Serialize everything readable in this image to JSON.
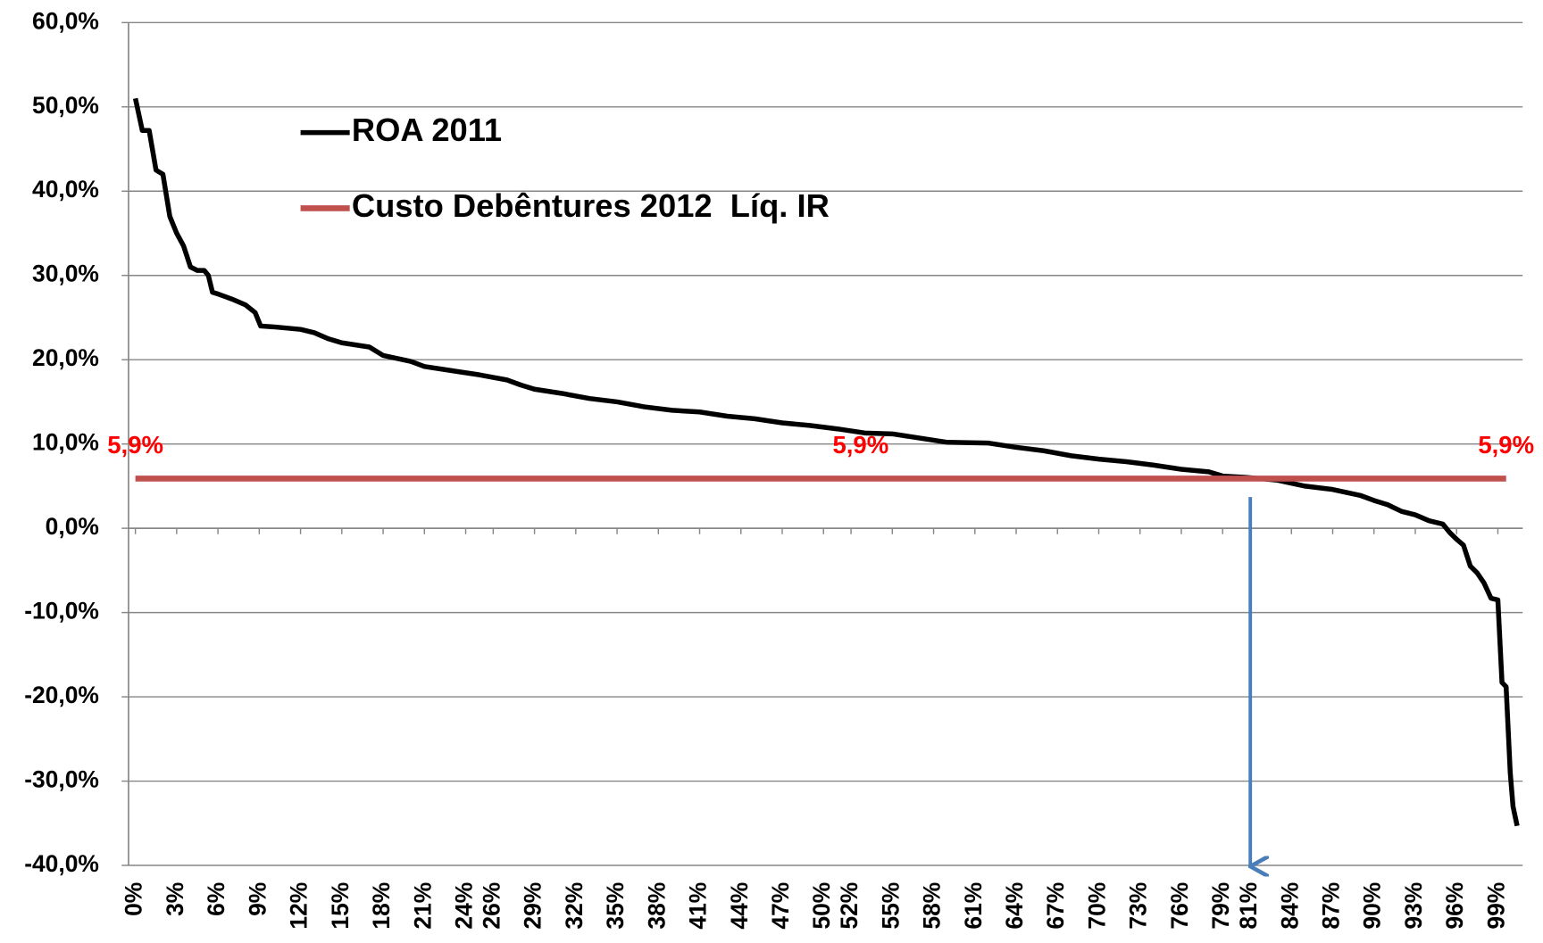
{
  "chart_data": {
    "type": "line",
    "legend": "upper left",
    "grid": true,
    "xlim": [
      -0.5,
      100.8
    ],
    "ylim": [
      -40,
      60
    ],
    "xticks": [
      {
        "value": 0,
        "label": "0%"
      },
      {
        "value": 3,
        "label": "3%"
      },
      {
        "value": 6,
        "label": "6%"
      },
      {
        "value": 9,
        "label": "9%"
      },
      {
        "value": 12,
        "label": "12%"
      },
      {
        "value": 15,
        "label": "15%"
      },
      {
        "value": 18,
        "label": "18%"
      },
      {
        "value": 21,
        "label": "21%"
      },
      {
        "value": 24,
        "label": "24%"
      },
      {
        "value": 26,
        "label": "26%"
      },
      {
        "value": 29,
        "label": "29%"
      },
      {
        "value": 32,
        "label": "32%"
      },
      {
        "value": 35,
        "label": "35%"
      },
      {
        "value": 38,
        "label": "38%"
      },
      {
        "value": 41,
        "label": "41%"
      },
      {
        "value": 44,
        "label": "44%"
      },
      {
        "value": 47,
        "label": "47%"
      },
      {
        "value": 50,
        "label": "50%"
      },
      {
        "value": 52,
        "label": "52%"
      },
      {
        "value": 55,
        "label": "55%"
      },
      {
        "value": 58,
        "label": "58%"
      },
      {
        "value": 61,
        "label": "61%"
      },
      {
        "value": 64,
        "label": "64%"
      },
      {
        "value": 67,
        "label": "67%"
      },
      {
        "value": 70,
        "label": "70%"
      },
      {
        "value": 73,
        "label": "73%"
      },
      {
        "value": 76,
        "label": "76%"
      },
      {
        "value": 79,
        "label": "79%"
      },
      {
        "value": 81,
        "label": "81%"
      },
      {
        "value": 84,
        "label": "84%"
      },
      {
        "value": 87,
        "label": "87%"
      },
      {
        "value": 90,
        "label": "90%"
      },
      {
        "value": 93,
        "label": "93%"
      },
      {
        "value": 96,
        "label": "96%"
      },
      {
        "value": 99,
        "label": "99%"
      }
    ],
    "yticks": [
      {
        "value": 60,
        "label": "60,0%"
      },
      {
        "value": 50,
        "label": "50,0%"
      },
      {
        "value": 40,
        "label": "40,0%"
      },
      {
        "value": 30,
        "label": "30,0%"
      },
      {
        "value": 20,
        "label": "20,0%"
      },
      {
        "value": 10,
        "label": "10,0%"
      },
      {
        "value": 0,
        "label": "0,0%"
      },
      {
        "value": -10,
        "label": "-10,0%"
      },
      {
        "value": -20,
        "label": "-20,0%"
      },
      {
        "value": -30,
        "label": "-30,0%"
      },
      {
        "value": -40,
        "label": "-40,0%"
      }
    ],
    "series": [
      {
        "name": "ROA 2011",
        "color": "#000000",
        "x": [
          0,
          0.5,
          1,
          1.5,
          2,
          2.5,
          3,
          3.5,
          4,
          4.5,
          5,
          5.3,
          5.6,
          6,
          7,
          8,
          8.7,
          9.1,
          10,
          12,
          13,
          14,
          15,
          17,
          18,
          20,
          21,
          23,
          25,
          27,
          28,
          29,
          31,
          33,
          35,
          37,
          39,
          41,
          43,
          45,
          47,
          49,
          51,
          53,
          55,
          57,
          59,
          62,
          64,
          66,
          68,
          70,
          72,
          74,
          76,
          78,
          79,
          81,
          83,
          85,
          87,
          89,
          90,
          91,
          92,
          93,
          94,
          95,
          95.5,
          96,
          96.5,
          97,
          97.5,
          98,
          98.5,
          99,
          99.3,
          99.6,
          99.9,
          100.1,
          100.4
        ],
        "values": [
          51,
          47.2,
          47.2,
          42.5,
          42,
          37,
          35,
          33.5,
          31,
          30.6,
          30.6,
          30,
          28,
          27.8,
          27.2,
          26.5,
          25.6,
          24,
          23.9,
          23.6,
          23.2,
          22.5,
          22,
          21.5,
          20.5,
          19.8,
          19.2,
          18.7,
          18.2,
          17.6,
          17,
          16.5,
          16,
          15.4,
          15,
          14.4,
          14,
          13.8,
          13.3,
          13,
          12.5,
          12.2,
          11.8,
          11.3,
          11.2,
          10.7,
          10.2,
          10.1,
          9.6,
          9.2,
          8.6,
          8.2,
          7.9,
          7.5,
          7.0,
          6.7,
          6.2,
          6.0,
          5.7,
          5.0,
          4.6,
          3.9,
          3.3,
          2.8,
          2.0,
          1.6,
          0.9,
          0.5,
          -0.5,
          -1.3,
          -2.0,
          -4.5,
          -5.3,
          -6.5,
          -8.3,
          -8.5,
          -18.3,
          -18.8,
          -29,
          -33,
          -35.3
        ]
      },
      {
        "name": "Custo Debêntures 2012  Líq. IR",
        "color": "#c0504d",
        "x": [
          0,
          52.7,
          99.6
        ],
        "values": [
          5.9,
          5.9,
          5.9
        ],
        "value_labels": [
          "5,9%",
          "5,9%",
          "5,9%"
        ]
      }
    ]
  }
}
